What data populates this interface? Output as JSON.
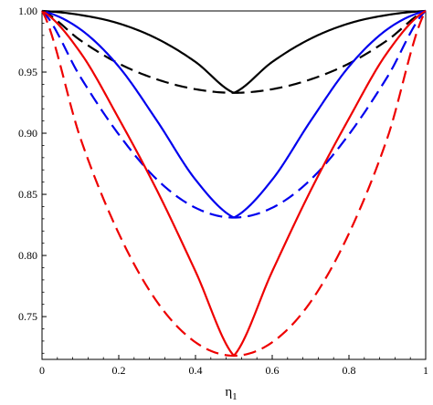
{
  "chart_data": {
    "type": "line",
    "xlabel": "η",
    "xlabel_subscript": "1",
    "ylabel": "",
    "xlim": [
      0,
      1
    ],
    "ylim": [
      0.715,
      1.0
    ],
    "x_ticks": [
      0,
      0.2,
      0.4,
      0.6,
      0.8,
      1
    ],
    "x_tick_labels": [
      "0",
      "0.2",
      "0.4",
      "0.6",
      "0.8",
      "1"
    ],
    "y_ticks": [
      0.75,
      0.8,
      0.85,
      0.9,
      0.95,
      1.0
    ],
    "y_tick_labels": [
      "0.75",
      "0.80",
      "0.85",
      "0.90",
      "0.95",
      "1.00"
    ],
    "grid": false,
    "series": [
      {
        "color": "#000000",
        "style": "solid",
        "x": [
          0,
          0.1,
          0.2,
          0.3,
          0.4,
          0.5,
          0.6,
          0.7,
          0.8,
          0.9,
          1
        ],
        "y": [
          1.0,
          0.9967,
          0.9898,
          0.9773,
          0.9583,
          0.933,
          0.9583,
          0.9773,
          0.9898,
          0.9967,
          1.0
        ]
      },
      {
        "color": "#000000",
        "style": "dashed",
        "x": [
          0,
          0.1,
          0.2,
          0.3,
          0.4,
          0.5,
          0.6,
          0.7,
          0.8,
          0.9,
          1
        ],
        "y": [
          1.0,
          0.976,
          0.957,
          0.944,
          0.936,
          0.933,
          0.936,
          0.944,
          0.957,
          0.976,
          1.0
        ]
      },
      {
        "color": "#0000ee",
        "style": "solid",
        "x": [
          0,
          0.1,
          0.2,
          0.3,
          0.4,
          0.5,
          0.6,
          0.7,
          0.8,
          0.9,
          1
        ],
        "y": [
          1.0,
          0.985,
          0.9545,
          0.91,
          0.862,
          0.831,
          0.862,
          0.91,
          0.9545,
          0.985,
          1.0
        ]
      },
      {
        "color": "#0000ee",
        "style": "dashed",
        "x": [
          0,
          0.1,
          0.2,
          0.3,
          0.4,
          0.5,
          0.6,
          0.7,
          0.8,
          0.9,
          1
        ],
        "y": [
          1.0,
          0.946,
          0.899,
          0.862,
          0.839,
          0.831,
          0.839,
          0.862,
          0.899,
          0.946,
          1.0
        ]
      },
      {
        "color": "#ee0000",
        "style": "solid",
        "x": [
          0,
          0.1,
          0.2,
          0.3,
          0.4,
          0.5,
          0.6,
          0.7,
          0.8,
          0.9,
          1
        ],
        "y": [
          1.0,
          0.966,
          0.912,
          0.853,
          0.787,
          0.718,
          0.787,
          0.853,
          0.912,
          0.966,
          1.0
        ]
      },
      {
        "color": "#ee0000",
        "style": "dashed",
        "x": [
          0,
          0.1,
          0.2,
          0.3,
          0.4,
          0.5,
          0.6,
          0.7,
          0.8,
          0.9,
          1
        ],
        "y": [
          1.0,
          0.896,
          0.818,
          0.762,
          0.729,
          0.718,
          0.729,
          0.762,
          0.818,
          0.896,
          1.0
        ]
      }
    ]
  }
}
